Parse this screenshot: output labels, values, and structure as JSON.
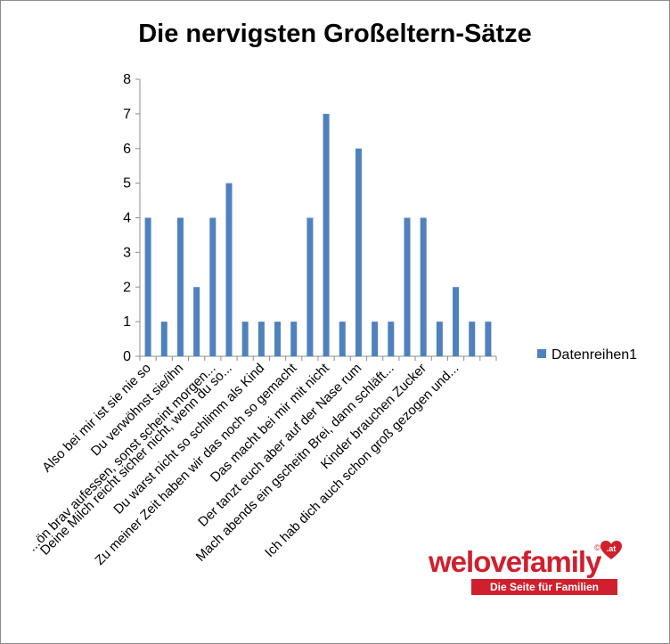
{
  "chart_data": {
    "type": "bar",
    "title": "Die nervigsten Großeltern-Sätze",
    "categories": [
      "Also bei mir ist sie nie so",
      "",
      "Du verwöhnst sie/ihn",
      "",
      "...ön brav aufessen, sonst scheint morgen...",
      "Deine Milch reicht sicher nicht, wenn du so...",
      "",
      "Du warst nicht so schlimm als Kind",
      "",
      "Zu meiner Zeit haben wir das noch so gemacht",
      "",
      "Das macht bei mir mit nicht",
      "",
      "Der tanzt euch aber auf der Nase rum",
      "",
      "Mach abends ein gscheitn Brei, dann schläft...",
      "",
      "Kinder brauchen Zucker",
      "",
      "Ich hab dich auch schon groß gezogen und...",
      "",
      ""
    ],
    "series": [
      {
        "name": "Datenreihen1",
        "values": [
          4,
          1,
          4,
          2,
          4,
          5,
          1,
          1,
          1,
          1,
          4,
          7,
          1,
          6,
          1,
          1,
          4,
          4,
          1,
          2,
          1,
          1
        ]
      }
    ],
    "ylim": [
      0,
      8
    ],
    "yticks": [
      "0",
      "1",
      "2",
      "3",
      "4",
      "5",
      "6",
      "7",
      "8"
    ],
    "legend_position": "right",
    "bar_color": "#4f81bd",
    "grid": false
  },
  "logo": {
    "wordmark": "welovefamily",
    "tld": ".at",
    "copyright": "©",
    "tagline": "Die Seite für Familien",
    "color": "#d0202e"
  }
}
